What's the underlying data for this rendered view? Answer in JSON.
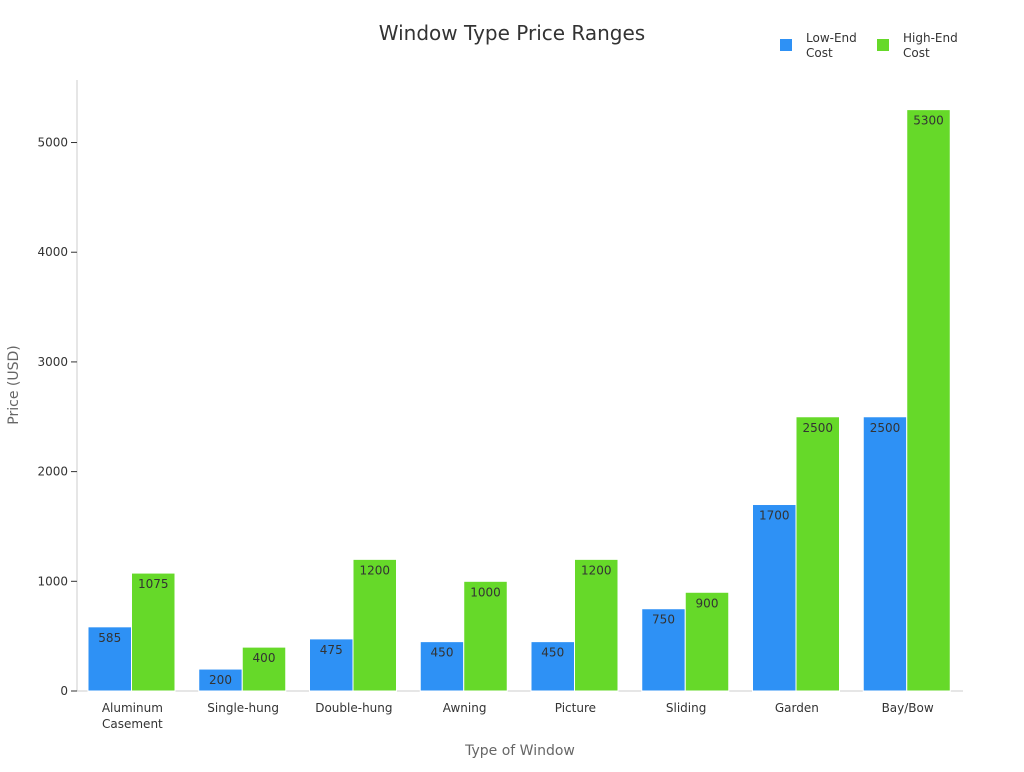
{
  "chart_data": {
    "type": "bar",
    "title": "Window Type Price Ranges",
    "xlabel": "Type of Window",
    "ylabel": "Price (USD)",
    "categories": [
      [
        "Aluminum",
        "Casement"
      ],
      [
        "Single-hung"
      ],
      [
        "Double-hung"
      ],
      [
        "Awning"
      ],
      [
        "Picture"
      ],
      [
        "Sliding"
      ],
      [
        "Garden"
      ],
      [
        "Bay/Bow"
      ]
    ],
    "series": [
      {
        "name": [
          "Low-End",
          "Cost"
        ],
        "color": "#2e91f5",
        "values": [
          585,
          200,
          475,
          450,
          450,
          750,
          1700,
          2500
        ]
      },
      {
        "name": [
          "High-End",
          "Cost"
        ],
        "color": "#66d929",
        "values": [
          1075,
          400,
          1200,
          1000,
          1200,
          900,
          2500,
          5300
        ]
      }
    ],
    "ylim": [
      0,
      5570
    ],
    "yticks": [
      0,
      1000,
      2000,
      3000,
      4000,
      5000
    ],
    "legend_position": "top-right",
    "grid": false,
    "data_labels": true
  }
}
